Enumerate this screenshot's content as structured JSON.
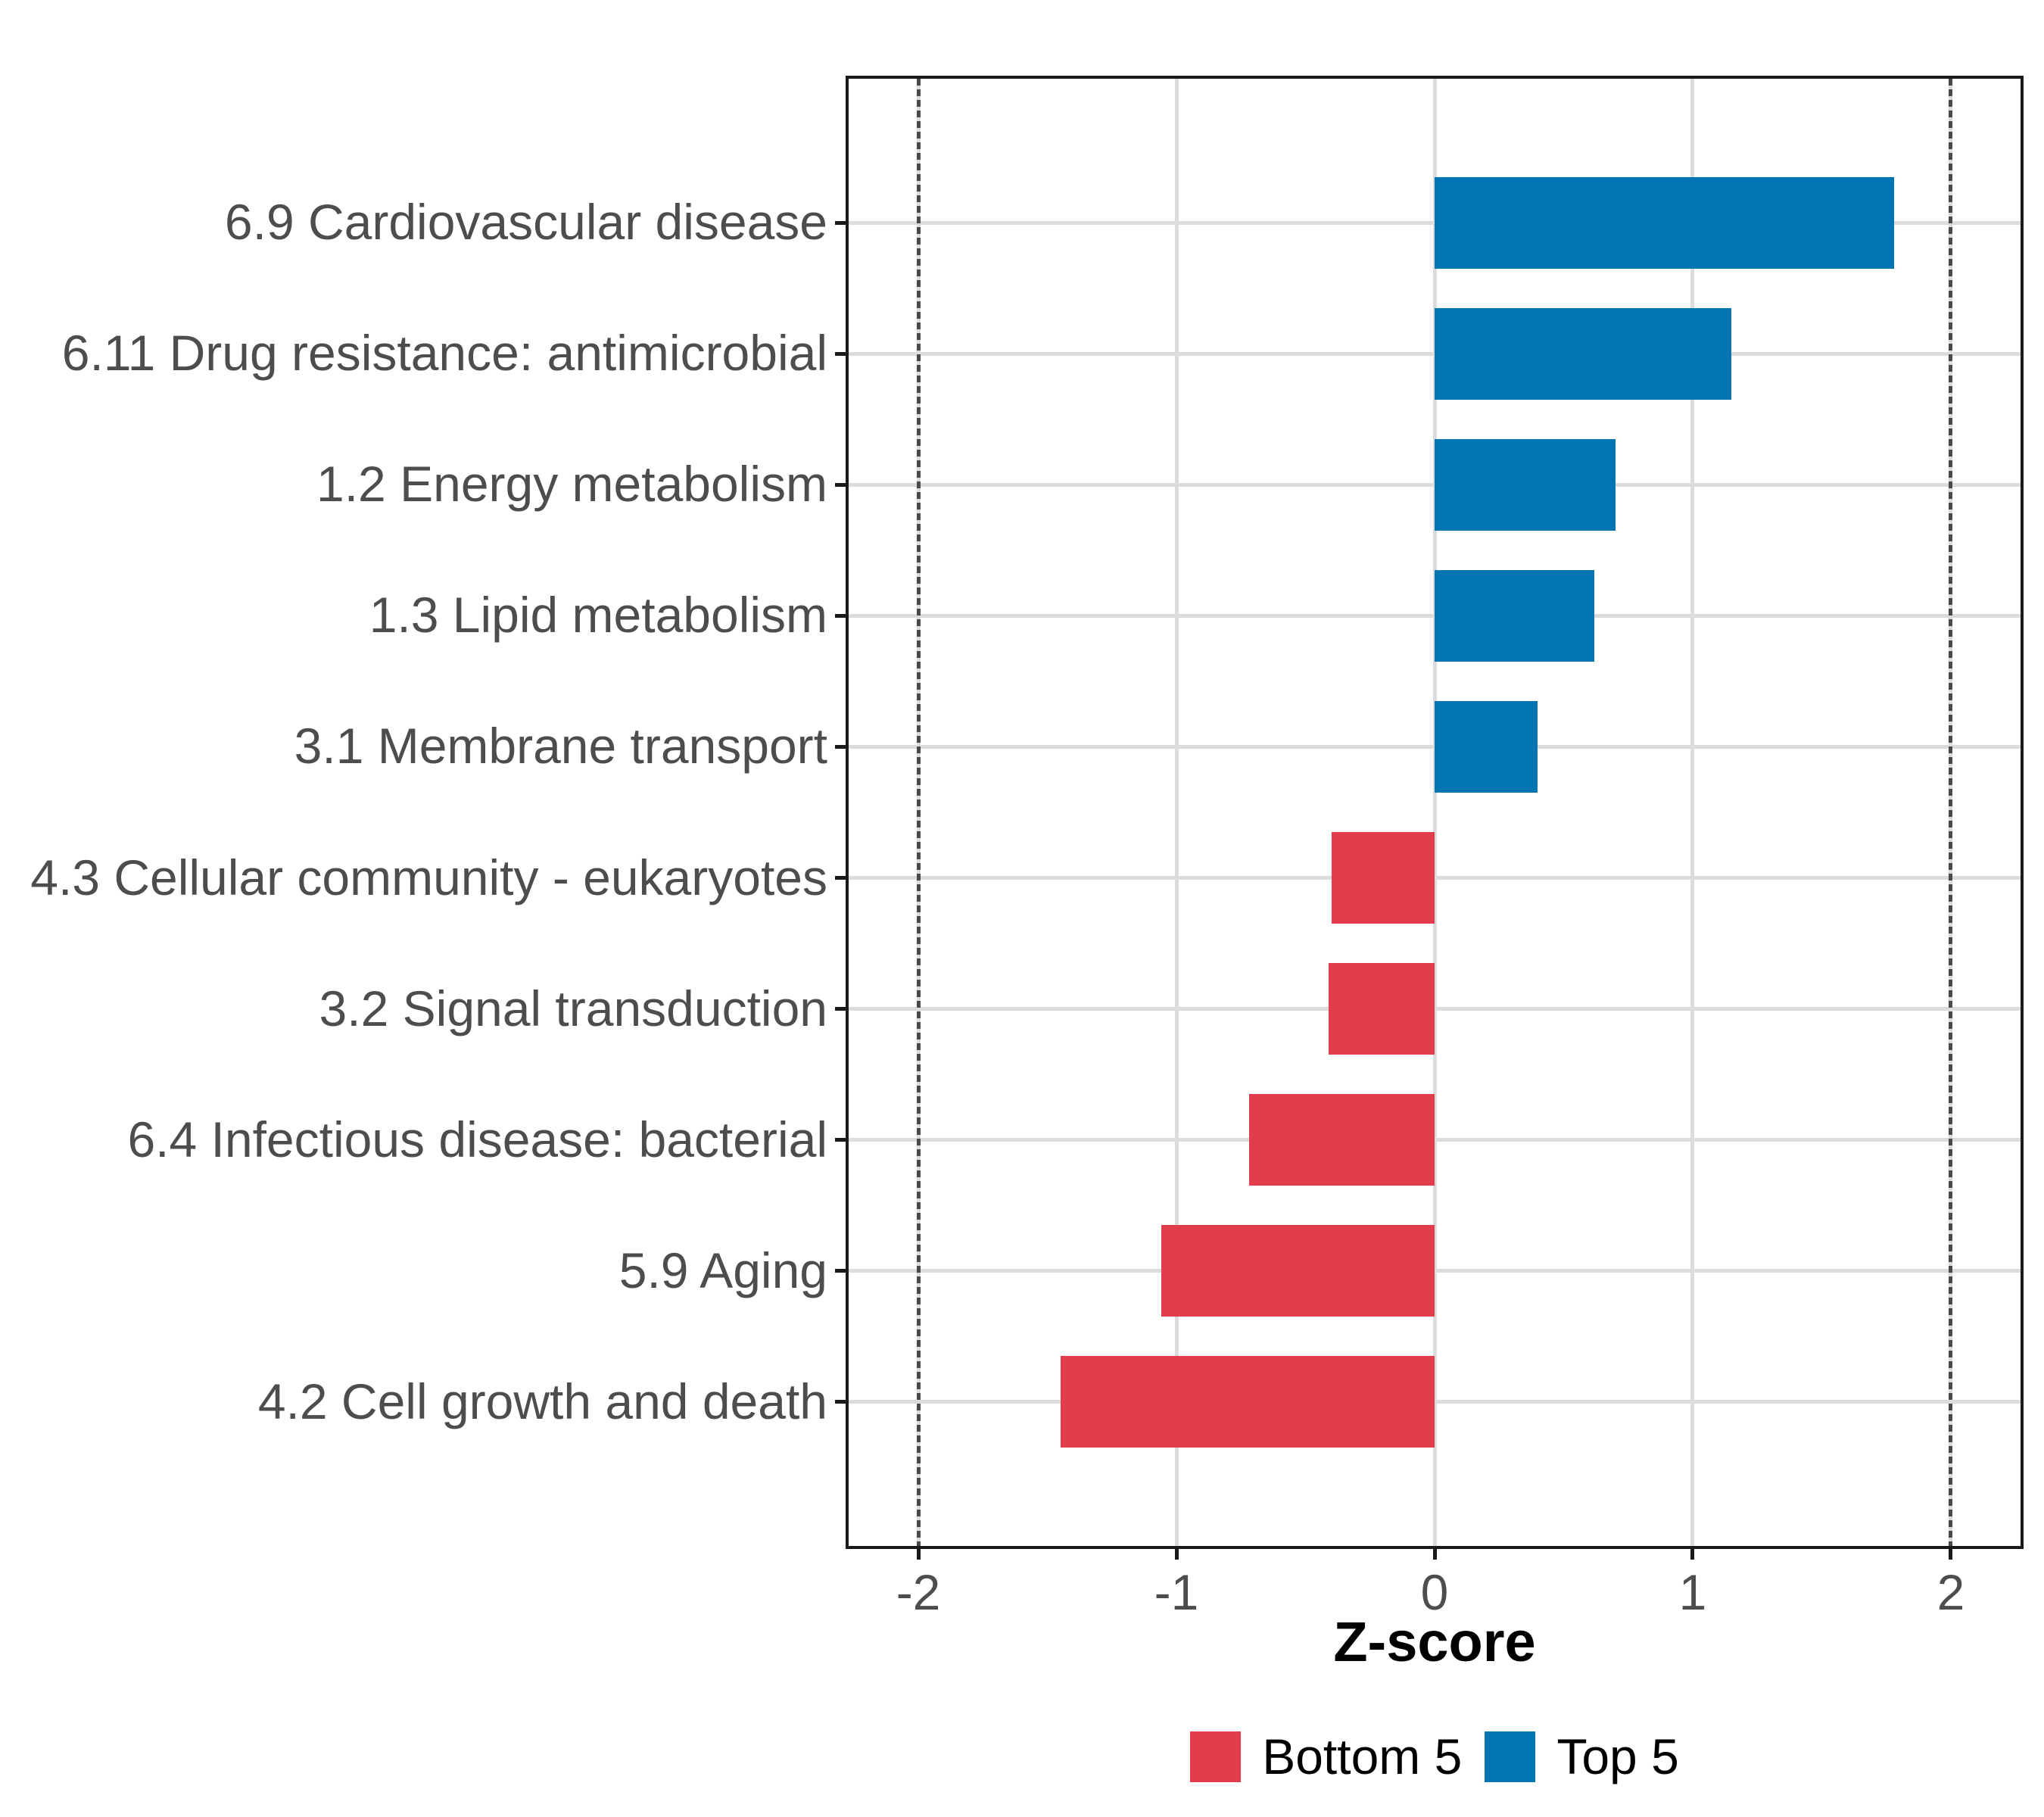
{
  "chart_data": {
    "type": "bar",
    "orientation": "horizontal",
    "title": "",
    "xlabel": "Z-score",
    "ylabel": "",
    "categories": [
      "6.9 Cardiovascular disease",
      "6.11 Drug resistance: antimicrobial",
      "1.2 Energy metabolism",
      "1.3 Lipid metabolism",
      "3.1 Membrane transport",
      "4.3 Cellular community - eukaryotes",
      "3.2 Signal transduction",
      "6.4 Infectious disease: bacterial",
      "5.9 Aging",
      "4.2 Cell growth and death"
    ],
    "values": [
      1.78,
      1.15,
      0.7,
      0.62,
      0.4,
      -0.4,
      -0.41,
      -0.72,
      -1.06,
      -1.45
    ],
    "groups": [
      "Top 5",
      "Top 5",
      "Top 5",
      "Top 5",
      "Top 5",
      "Bottom 5",
      "Bottom 5",
      "Bottom 5",
      "Bottom 5",
      "Bottom 5"
    ],
    "xlim": [
      -2.27,
      2.27
    ],
    "xticks": [
      -2,
      -1,
      0,
      1,
      2
    ],
    "xtick_labels": [
      "-2",
      "-1",
      "0",
      "1",
      "2"
    ],
    "reference_lines": [
      {
        "x": -2,
        "style": "dotted"
      },
      {
        "x": 2,
        "style": "dotted"
      }
    ],
    "grid": true,
    "bar_width": 0.7,
    "y_padding": 0.6,
    "legend": {
      "position": "bottom",
      "entries": [
        {
          "label": "Bottom 5",
          "color": "#E23C4D"
        },
        {
          "label": "Top 5",
          "color": "#0075B4"
        }
      ]
    },
    "colors": {
      "grid": "#DCDCDC",
      "axis_text": "#4D4D4D",
      "panel_border": "#1A1A1A",
      "reference_line": "#4A4A4A",
      "background": "#FFFFFF"
    }
  }
}
